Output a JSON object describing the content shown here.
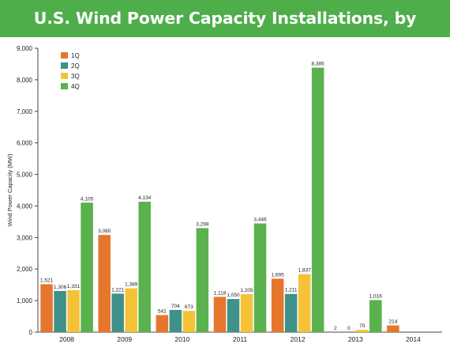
{
  "title": "U.S. Wind Power Capacity Installations, by Quarter",
  "colors": {
    "title_bg": "#4eae4a",
    "1Q": "#e5762c",
    "2Q": "#3f9189",
    "3Q": "#f5c237",
    "4Q": "#5ab14e"
  },
  "chart_data": {
    "type": "bar",
    "categories": [
      "2008",
      "2009",
      "2010",
      "2011",
      "2012",
      "2013",
      "2014"
    ],
    "series": [
      {
        "name": "1Q",
        "values": [
          1521,
          3080,
          541,
          1118,
          1695,
          2,
          214
        ]
      },
      {
        "name": "2Q",
        "values": [
          1306,
          1221,
          704,
          1050,
          1211,
          0,
          null
        ]
      },
      {
        "name": "3Q",
        "values": [
          1331,
          1389,
          673,
          1205,
          1837,
          70,
          null
        ]
      },
      {
        "name": "4Q",
        "values": [
          4105,
          4134,
          3298,
          3446,
          8385,
          1016,
          null
        ]
      }
    ],
    "data_labels": [
      [
        "1,521",
        "1,306",
        "1,331",
        "4,105"
      ],
      [
        "3,080",
        "1,221",
        "1,389",
        "4,134"
      ],
      [
        "541",
        "704",
        "673",
        "3,298"
      ],
      [
        "1,118",
        "1,050",
        "1,205",
        "3,446"
      ],
      [
        "1,695",
        "1,211",
        "1,837",
        "8,385"
      ],
      [
        "2",
        "0",
        "70",
        "1,016"
      ],
      [
        "214",
        null,
        null,
        null
      ]
    ],
    "ylabel": "Wind Power Capacity (MW)",
    "xlabel": "",
    "ylim": [
      0,
      9000
    ],
    "y_ticks": [
      0,
      1000,
      2000,
      3000,
      4000,
      5000,
      6000,
      7000,
      8000,
      9000
    ],
    "y_tick_labels": [
      "0",
      "1,000",
      "2,000",
      "3,000",
      "4,000",
      "5,000",
      "6,000",
      "7,000",
      "8,000",
      "9,000"
    ],
    "grid": false,
    "legend_position": "top-left"
  }
}
